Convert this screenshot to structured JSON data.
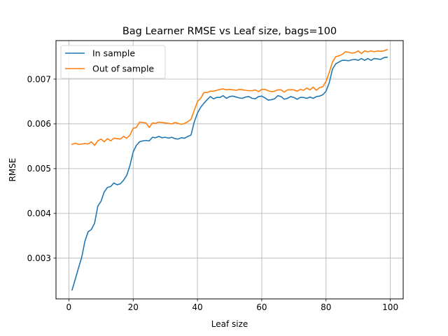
{
  "chart_data": {
    "type": "line",
    "title": "Bag Learner RMSE vs Leaf size, bags=100",
    "xlabel": "Leaf size",
    "ylabel": "RMSE",
    "xlim": [
      -4.0,
      104.0
    ],
    "ylim": [
      0.00209,
      0.00786
    ],
    "xticks": [
      0,
      20,
      40,
      60,
      80,
      100
    ],
    "yticks": [
      0.003,
      0.004,
      0.005,
      0.006,
      0.007
    ],
    "ytick_labels": [
      "0.003",
      "0.004",
      "0.005",
      "0.006",
      "0.007"
    ],
    "grid": true,
    "legend_position": "upper-left",
    "x": [
      1,
      2,
      3,
      4,
      5,
      6,
      7,
      8,
      9,
      10,
      11,
      12,
      13,
      14,
      15,
      16,
      17,
      18,
      19,
      20,
      21,
      22,
      23,
      24,
      25,
      26,
      27,
      28,
      29,
      30,
      31,
      32,
      33,
      34,
      35,
      36,
      37,
      38,
      39,
      40,
      41,
      42,
      43,
      44,
      45,
      46,
      47,
      48,
      49,
      50,
      51,
      52,
      53,
      54,
      55,
      56,
      57,
      58,
      59,
      60,
      61,
      62,
      63,
      64,
      65,
      66,
      67,
      68,
      69,
      70,
      71,
      72,
      73,
      74,
      75,
      76,
      77,
      78,
      79,
      80,
      81,
      82,
      83,
      84,
      85,
      86,
      87,
      88,
      89,
      90,
      91,
      92,
      93,
      94,
      95,
      96,
      97,
      98,
      99
    ],
    "series": [
      {
        "name": "In sample",
        "color": "#1f77b4",
        "values": [
          0.00229,
          0.00253,
          0.00278,
          0.00302,
          0.00338,
          0.00359,
          0.00364,
          0.00378,
          0.00416,
          0.00427,
          0.00448,
          0.00458,
          0.0046,
          0.00468,
          0.00464,
          0.00466,
          0.00474,
          0.00485,
          0.00507,
          0.00537,
          0.00552,
          0.0056,
          0.00562,
          0.00563,
          0.00562,
          0.0057,
          0.00569,
          0.00572,
          0.00569,
          0.0057,
          0.00568,
          0.0057,
          0.00567,
          0.00566,
          0.00569,
          0.00568,
          0.00572,
          0.00575,
          0.00604,
          0.00624,
          0.00637,
          0.00646,
          0.00654,
          0.00661,
          0.00656,
          0.00659,
          0.00659,
          0.00663,
          0.00657,
          0.00661,
          0.00662,
          0.0066,
          0.00658,
          0.00657,
          0.0066,
          0.00661,
          0.00657,
          0.00656,
          0.00661,
          0.00662,
          0.00658,
          0.00653,
          0.00654,
          0.00656,
          0.00663,
          0.00661,
          0.00655,
          0.00657,
          0.00661,
          0.00659,
          0.00655,
          0.00659,
          0.00659,
          0.00657,
          0.0066,
          0.00657,
          0.00661,
          0.00662,
          0.00665,
          0.00673,
          0.00692,
          0.00722,
          0.00734,
          0.00738,
          0.00742,
          0.00742,
          0.00741,
          0.00743,
          0.00744,
          0.00742,
          0.00746,
          0.00742,
          0.00746,
          0.00742,
          0.00746,
          0.00745,
          0.00744,
          0.00748,
          0.00749
        ]
      },
      {
        "name": "Out of sample",
        "color": "#ff7f0e",
        "values": [
          0.00554,
          0.00557,
          0.00554,
          0.00555,
          0.00556,
          0.00555,
          0.0056,
          0.00552,
          0.00562,
          0.00566,
          0.0056,
          0.00567,
          0.00562,
          0.00568,
          0.00567,
          0.00566,
          0.00572,
          0.00568,
          0.00575,
          0.0059,
          0.00592,
          0.00604,
          0.00603,
          0.00602,
          0.00592,
          0.00602,
          0.00601,
          0.00604,
          0.00603,
          0.00602,
          0.00601,
          0.006,
          0.00603,
          0.00601,
          0.00599,
          0.00601,
          0.00605,
          0.0061,
          0.0063,
          0.0065,
          0.00657,
          0.0067,
          0.0067,
          0.00673,
          0.00673,
          0.00675,
          0.00677,
          0.00678,
          0.00676,
          0.00677,
          0.00676,
          0.00675,
          0.00677,
          0.00676,
          0.00675,
          0.00674,
          0.00674,
          0.00676,
          0.00672,
          0.00677,
          0.00677,
          0.00674,
          0.00672,
          0.00673,
          0.00676,
          0.00676,
          0.00671,
          0.00676,
          0.00676,
          0.00676,
          0.00673,
          0.00677,
          0.00675,
          0.0068,
          0.00676,
          0.00682,
          0.00675,
          0.00681,
          0.00683,
          0.00695,
          0.00715,
          0.00738,
          0.0075,
          0.00752,
          0.00755,
          0.00761,
          0.0076,
          0.00758,
          0.00759,
          0.00763,
          0.00757,
          0.00763,
          0.00761,
          0.00763,
          0.00761,
          0.00763,
          0.00762,
          0.00763,
          0.00766
        ]
      }
    ]
  }
}
